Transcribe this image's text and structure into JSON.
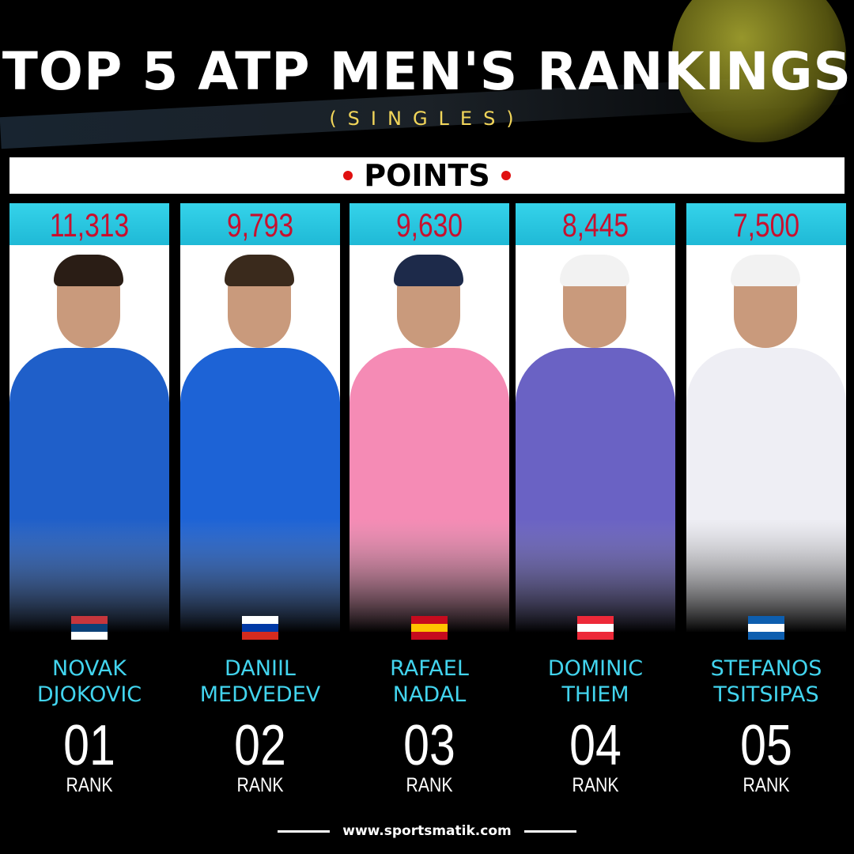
{
  "title": "TOP 5 ATP MEN'S RANKINGS",
  "subtitle": "(SINGLES)",
  "points_label": "POINTS",
  "rank_label": "RANK",
  "website": "www.sportsmatik.com",
  "colors": {
    "accent_cyan": "#35d3ea",
    "points_red": "#c8102e",
    "subtitle_gold": "#f2d65a",
    "dot_red": "#e01010"
  },
  "players": [
    {
      "points": "11,313",
      "first": "NOVAK",
      "last": "DJOKOVIC",
      "rank": "01",
      "flag": [
        "#c6363c",
        "#0c4076",
        "#ffffff"
      ],
      "shirt": "#1f5fc9",
      "hair": "#2a1d15"
    },
    {
      "points": "9,793",
      "first": "DANIIL",
      "last": "MEDVEDEV",
      "rank": "02",
      "flag": [
        "#ffffff",
        "#0039a6",
        "#d52b1e"
      ],
      "shirt": "#1d63d6",
      "hair": "#3a2a1c"
    },
    {
      "points": "9,630",
      "first": "RAFAEL",
      "last": "NADAL",
      "rank": "03",
      "flag": [
        "#c60b1e",
        "#ffc400",
        "#c60b1e"
      ],
      "shirt": "#f58bb5",
      "hair": "#1d2a4a"
    },
    {
      "points": "8,445",
      "first": "DOMINIC",
      "last": "THIEM",
      "rank": "04",
      "flag": [
        "#ed2939",
        "#ffffff",
        "#ed2939"
      ],
      "shirt": "#6a62c4",
      "hair": "#f2f2f2"
    },
    {
      "points": "7,500",
      "first": "STEFANOS",
      "last": "TSITSIPAS",
      "rank": "05",
      "flag": [
        "#0d5eaf",
        "#ffffff",
        "#0d5eaf"
      ],
      "shirt": "#eeeef4",
      "hair": "#f2f2f2"
    }
  ]
}
